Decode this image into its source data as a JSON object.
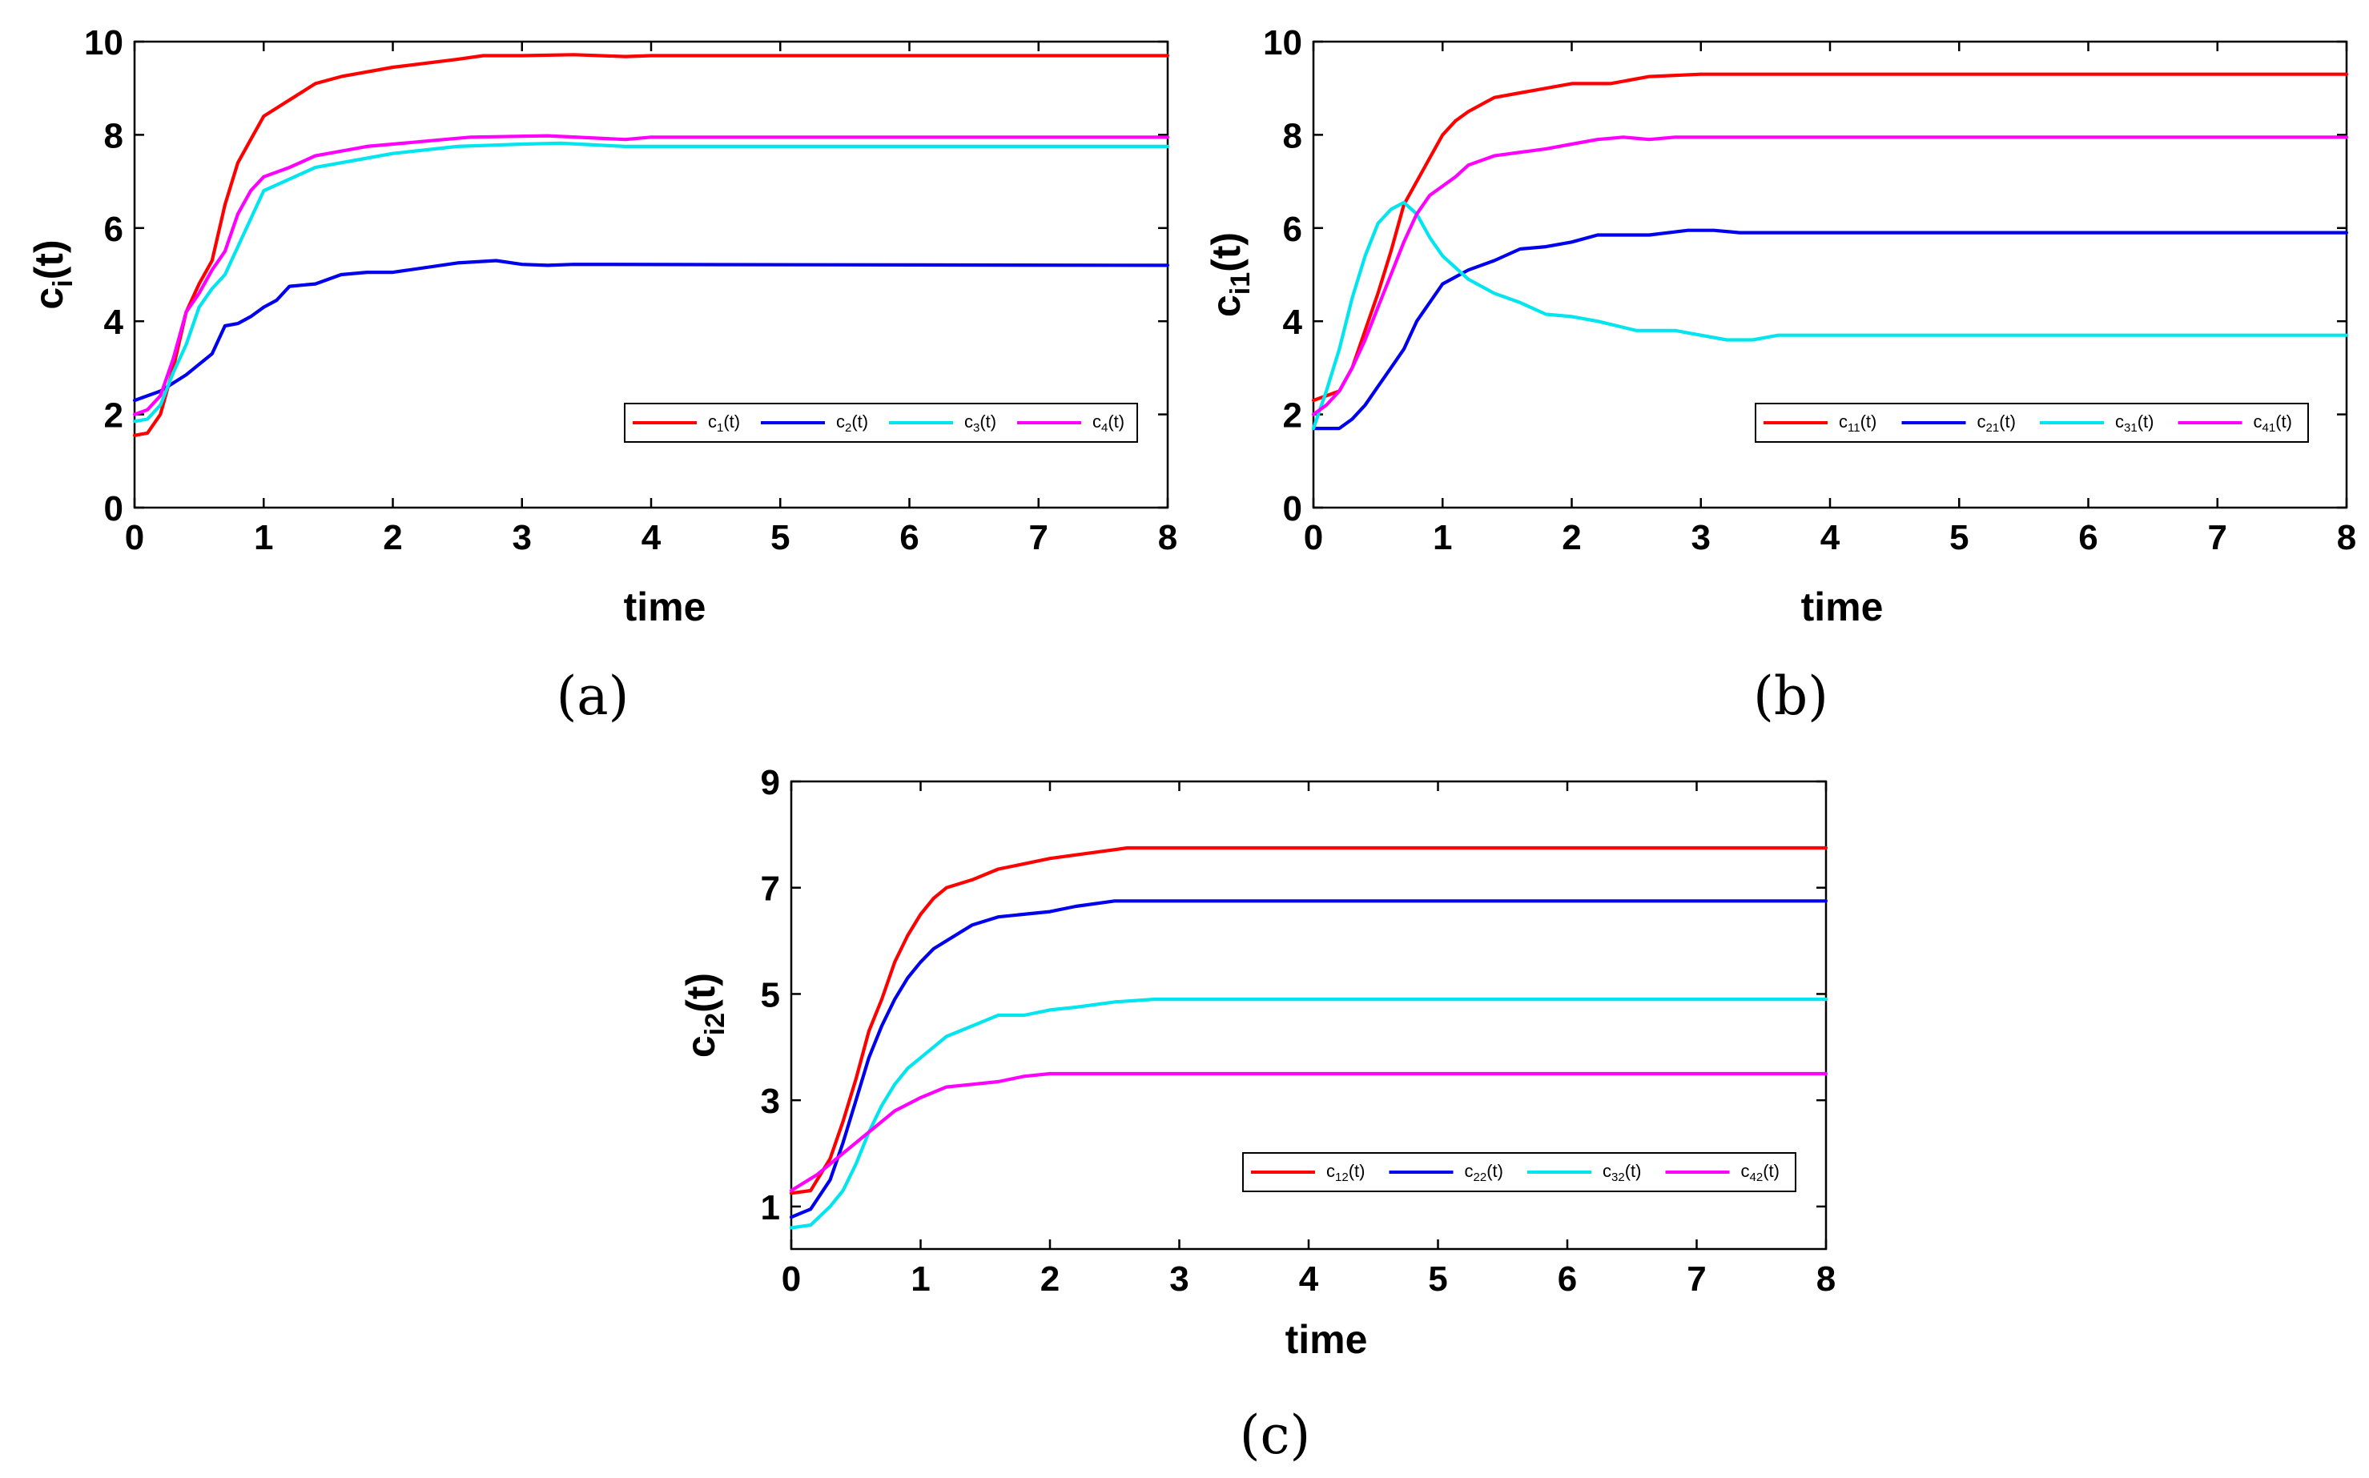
{
  "chart_data": [
    {
      "type": "line",
      "panel_label": "(a)",
      "xlabel": "time",
      "ylabel_base": "c",
      "ylabel_sub": "i",
      "ylabel_tail": "(t)",
      "xlim": [
        0,
        8
      ],
      "ylim": [
        0,
        10
      ],
      "xticks": [
        "0",
        "1",
        "2",
        "3",
        "4",
        "5",
        "6",
        "7",
        "8"
      ],
      "yticks": [
        "0",
        "2",
        "4",
        "6",
        "8",
        "10"
      ],
      "legend_position": "lower-right",
      "series": [
        {
          "name": "c_1(t)",
          "label_base": "c",
          "label_sub": "1",
          "label_tail": "(t)",
          "color": "#ff0000",
          "points": [
            [
              0,
              1.55
            ],
            [
              0.1,
              1.6
            ],
            [
              0.2,
              2.0
            ],
            [
              0.3,
              3.0
            ],
            [
              0.4,
              4.2
            ],
            [
              0.5,
              4.8
            ],
            [
              0.6,
              5.3
            ],
            [
              0.7,
              6.5
            ],
            [
              0.8,
              7.4
            ],
            [
              0.9,
              7.9
            ],
            [
              1.0,
              8.4
            ],
            [
              1.2,
              8.75
            ],
            [
              1.4,
              9.1
            ],
            [
              1.6,
              9.25
            ],
            [
              2.0,
              9.45
            ],
            [
              2.5,
              9.62
            ],
            [
              2.7,
              9.7
            ],
            [
              3.0,
              9.7
            ],
            [
              3.4,
              9.72
            ],
            [
              3.8,
              9.68
            ],
            [
              4.0,
              9.7
            ],
            [
              8,
              9.7
            ]
          ]
        },
        {
          "name": "c_2(t)",
          "label_base": "c",
          "label_sub": "2",
          "label_tail": "(t)",
          "color": "#0000ee",
          "points": [
            [
              0,
              2.3
            ],
            [
              0.2,
              2.5
            ],
            [
              0.4,
              2.85
            ],
            [
              0.6,
              3.3
            ],
            [
              0.7,
              3.9
            ],
            [
              0.8,
              3.95
            ],
            [
              0.9,
              4.1
            ],
            [
              1.0,
              4.3
            ],
            [
              1.1,
              4.45
            ],
            [
              1.2,
              4.75
            ],
            [
              1.4,
              4.8
            ],
            [
              1.6,
              5.0
            ],
            [
              1.8,
              5.05
            ],
            [
              2.0,
              5.05
            ],
            [
              2.5,
              5.25
            ],
            [
              2.8,
              5.3
            ],
            [
              3.0,
              5.22
            ],
            [
              3.2,
              5.2
            ],
            [
              3.4,
              5.22
            ],
            [
              8,
              5.2
            ]
          ]
        },
        {
          "name": "c_3(t)",
          "label_base": "c",
          "label_sub": "3",
          "label_tail": "(t)",
          "color": "#00e5ee",
          "points": [
            [
              0,
              1.85
            ],
            [
              0.1,
              1.9
            ],
            [
              0.2,
              2.2
            ],
            [
              0.3,
              2.9
            ],
            [
              0.4,
              3.5
            ],
            [
              0.5,
              4.3
            ],
            [
              0.6,
              4.7
            ],
            [
              0.7,
              5.0
            ],
            [
              0.8,
              5.6
            ],
            [
              0.9,
              6.2
            ],
            [
              1.0,
              6.8
            ],
            [
              1.2,
              7.05
            ],
            [
              1.4,
              7.3
            ],
            [
              1.8,
              7.5
            ],
            [
              2.0,
              7.6
            ],
            [
              2.5,
              7.75
            ],
            [
              3.0,
              7.8
            ],
            [
              3.3,
              7.82
            ],
            [
              3.8,
              7.75
            ],
            [
              8,
              7.75
            ]
          ]
        },
        {
          "name": "c_4(t)",
          "label_base": "c",
          "label_sub": "4",
          "label_tail": "(t)",
          "color": "#ff00ff",
          "points": [
            [
              0,
              2.0
            ],
            [
              0.1,
              2.1
            ],
            [
              0.2,
              2.4
            ],
            [
              0.3,
              3.2
            ],
            [
              0.4,
              4.2
            ],
            [
              0.5,
              4.6
            ],
            [
              0.6,
              5.1
            ],
            [
              0.7,
              5.5
            ],
            [
              0.8,
              6.3
            ],
            [
              0.9,
              6.8
            ],
            [
              1.0,
              7.1
            ],
            [
              1.2,
              7.3
            ],
            [
              1.4,
              7.55
            ],
            [
              1.8,
              7.75
            ],
            [
              2.0,
              7.8
            ],
            [
              2.4,
              7.9
            ],
            [
              2.6,
              7.95
            ],
            [
              3.2,
              7.98
            ],
            [
              3.8,
              7.9
            ],
            [
              4.0,
              7.95
            ],
            [
              8,
              7.95
            ]
          ]
        }
      ]
    },
    {
      "type": "line",
      "panel_label": "(b)",
      "xlabel": "time",
      "ylabel_base": "c",
      "ylabel_sub": "i1",
      "ylabel_tail": "(t)",
      "xlim": [
        0,
        8
      ],
      "ylim": [
        0,
        10
      ],
      "xticks": [
        "0",
        "1",
        "2",
        "3",
        "4",
        "5",
        "6",
        "7",
        "8"
      ],
      "yticks": [
        "0",
        "2",
        "4",
        "6",
        "8",
        "10"
      ],
      "legend_position": "lower-right",
      "series": [
        {
          "name": "c_11(t)",
          "label_base": "c",
          "label_sub": "11",
          "label_tail": "(t)",
          "color": "#ff0000",
          "points": [
            [
              0,
              2.3
            ],
            [
              0.2,
              2.5
            ],
            [
              0.3,
              3.0
            ],
            [
              0.4,
              3.8
            ],
            [
              0.5,
              4.6
            ],
            [
              0.6,
              5.5
            ],
            [
              0.7,
              6.5
            ],
            [
              0.8,
              7.0
            ],
            [
              0.9,
              7.5
            ],
            [
              1.0,
              8.0
            ],
            [
              1.1,
              8.3
            ],
            [
              1.2,
              8.5
            ],
            [
              1.4,
              8.8
            ],
            [
              1.6,
              8.9
            ],
            [
              2.0,
              9.1
            ],
            [
              2.3,
              9.1
            ],
            [
              2.6,
              9.25
            ],
            [
              3.0,
              9.3
            ],
            [
              8,
              9.3
            ]
          ]
        },
        {
          "name": "c_21(t)",
          "label_base": "c",
          "label_sub": "21",
          "label_tail": "(t)",
          "color": "#0000ee",
          "points": [
            [
              0,
              1.7
            ],
            [
              0.2,
              1.7
            ],
            [
              0.3,
              1.9
            ],
            [
              0.4,
              2.2
            ],
            [
              0.5,
              2.6
            ],
            [
              0.6,
              3.0
            ],
            [
              0.7,
              3.4
            ],
            [
              0.8,
              4.0
            ],
            [
              0.9,
              4.4
            ],
            [
              1.0,
              4.8
            ],
            [
              1.2,
              5.1
            ],
            [
              1.4,
              5.3
            ],
            [
              1.6,
              5.55
            ],
            [
              1.8,
              5.6
            ],
            [
              2.0,
              5.7
            ],
            [
              2.2,
              5.85
            ],
            [
              2.6,
              5.85
            ],
            [
              2.9,
              5.95
            ],
            [
              3.1,
              5.95
            ],
            [
              3.3,
              5.9
            ],
            [
              8,
              5.9
            ]
          ]
        },
        {
          "name": "c_31(t)",
          "label_base": "c",
          "label_sub": "31",
          "label_tail": "(t)",
          "color": "#00e5ee",
          "points": [
            [
              0,
              1.7
            ],
            [
              0.1,
              2.5
            ],
            [
              0.2,
              3.4
            ],
            [
              0.3,
              4.5
            ],
            [
              0.4,
              5.4
            ],
            [
              0.5,
              6.1
            ],
            [
              0.6,
              6.4
            ],
            [
              0.7,
              6.55
            ],
            [
              0.8,
              6.3
            ],
            [
              0.9,
              5.8
            ],
            [
              1.0,
              5.4
            ],
            [
              1.2,
              4.9
            ],
            [
              1.4,
              4.6
            ],
            [
              1.6,
              4.4
            ],
            [
              1.8,
              4.15
            ],
            [
              2.0,
              4.1
            ],
            [
              2.2,
              4.0
            ],
            [
              2.5,
              3.8
            ],
            [
              2.8,
              3.8
            ],
            [
              3.0,
              3.7
            ],
            [
              3.2,
              3.6
            ],
            [
              3.4,
              3.6
            ],
            [
              3.6,
              3.7
            ],
            [
              8,
              3.7
            ]
          ]
        },
        {
          "name": "c_41(t)",
          "label_base": "c",
          "label_sub": "41",
          "label_tail": "(t)",
          "color": "#ff00ff",
          "points": [
            [
              0,
              2.0
            ],
            [
              0.1,
              2.2
            ],
            [
              0.2,
              2.5
            ],
            [
              0.3,
              3.0
            ],
            [
              0.4,
              3.6
            ],
            [
              0.5,
              4.3
            ],
            [
              0.6,
              5.0
            ],
            [
              0.7,
              5.7
            ],
            [
              0.8,
              6.3
            ],
            [
              0.9,
              6.7
            ],
            [
              1.0,
              6.9
            ],
            [
              1.1,
              7.1
            ],
            [
              1.2,
              7.35
            ],
            [
              1.4,
              7.55
            ],
            [
              1.8,
              7.7
            ],
            [
              2.0,
              7.8
            ],
            [
              2.2,
              7.9
            ],
            [
              2.4,
              7.95
            ],
            [
              2.6,
              7.9
            ],
            [
              2.8,
              7.95
            ],
            [
              8,
              7.95
            ]
          ]
        }
      ]
    },
    {
      "type": "line",
      "panel_label": "(c)",
      "xlabel": "time",
      "ylabel_base": "c",
      "ylabel_sub": "i2",
      "ylabel_tail": "(t)",
      "xlim": [
        0,
        8
      ],
      "ylim": [
        0.2,
        9
      ],
      "xticks": [
        "0",
        "1",
        "2",
        "3",
        "4",
        "5",
        "6",
        "7",
        "8"
      ],
      "yticks": [
        "1",
        "3",
        "5",
        "7",
        "9"
      ],
      "ytick_values": [
        1,
        3,
        5,
        7,
        9
      ],
      "legend_position": "lower-right",
      "series": [
        {
          "name": "c_12(t)",
          "label_base": "c",
          "label_sub": "12",
          "label_tail": "(t)",
          "color": "#ff0000",
          "points": [
            [
              0,
              1.25
            ],
            [
              0.15,
              1.3
            ],
            [
              0.3,
              1.9
            ],
            [
              0.4,
              2.6
            ],
            [
              0.5,
              3.4
            ],
            [
              0.6,
              4.3
            ],
            [
              0.7,
              4.9
            ],
            [
              0.8,
              5.6
            ],
            [
              0.9,
              6.1
            ],
            [
              1.0,
              6.5
            ],
            [
              1.1,
              6.8
            ],
            [
              1.2,
              7.0
            ],
            [
              1.4,
              7.15
            ],
            [
              1.6,
              7.35
            ],
            [
              1.8,
              7.45
            ],
            [
              2.0,
              7.55
            ],
            [
              2.3,
              7.65
            ],
            [
              2.6,
              7.75
            ],
            [
              8,
              7.75
            ]
          ]
        },
        {
          "name": "c_22(t)",
          "label_base": "c",
          "label_sub": "22",
          "label_tail": "(t)",
          "color": "#0000ee",
          "points": [
            [
              0,
              0.8
            ],
            [
              0.15,
              0.95
            ],
            [
              0.3,
              1.5
            ],
            [
              0.4,
              2.2
            ],
            [
              0.5,
              3.0
            ],
            [
              0.6,
              3.8
            ],
            [
              0.7,
              4.4
            ],
            [
              0.8,
              4.9
            ],
            [
              0.9,
              5.3
            ],
            [
              1.0,
              5.6
            ],
            [
              1.1,
              5.85
            ],
            [
              1.2,
              6.0
            ],
            [
              1.4,
              6.3
            ],
            [
              1.6,
              6.45
            ],
            [
              1.8,
              6.5
            ],
            [
              2.0,
              6.55
            ],
            [
              2.2,
              6.65
            ],
            [
              2.5,
              6.75
            ],
            [
              8,
              6.75
            ]
          ]
        },
        {
          "name": "c_32(t)",
          "label_base": "c",
          "label_sub": "32",
          "label_tail": "(t)",
          "color": "#00e5ee",
          "points": [
            [
              0,
              0.6
            ],
            [
              0.15,
              0.65
            ],
            [
              0.3,
              1.0
            ],
            [
              0.4,
              1.3
            ],
            [
              0.5,
              1.8
            ],
            [
              0.6,
              2.4
            ],
            [
              0.7,
              2.9
            ],
            [
              0.8,
              3.3
            ],
            [
              0.9,
              3.6
            ],
            [
              1.0,
              3.8
            ],
            [
              1.2,
              4.2
            ],
            [
              1.4,
              4.4
            ],
            [
              1.6,
              4.6
            ],
            [
              1.8,
              4.6
            ],
            [
              2.0,
              4.7
            ],
            [
              2.2,
              4.75
            ],
            [
              2.5,
              4.85
            ],
            [
              2.8,
              4.9
            ],
            [
              8,
              4.9
            ]
          ]
        },
        {
          "name": "c_42(t)",
          "label_base": "c",
          "label_sub": "42",
          "label_tail": "(t)",
          "color": "#ff00ff",
          "points": [
            [
              0,
              1.3
            ],
            [
              0.2,
              1.6
            ],
            [
              0.4,
              2.0
            ],
            [
              0.6,
              2.4
            ],
            [
              0.8,
              2.8
            ],
            [
              1.0,
              3.05
            ],
            [
              1.2,
              3.25
            ],
            [
              1.4,
              3.3
            ],
            [
              1.6,
              3.35
            ],
            [
              1.8,
              3.45
            ],
            [
              2.0,
              3.5
            ],
            [
              8,
              3.5
            ]
          ]
        }
      ]
    }
  ]
}
